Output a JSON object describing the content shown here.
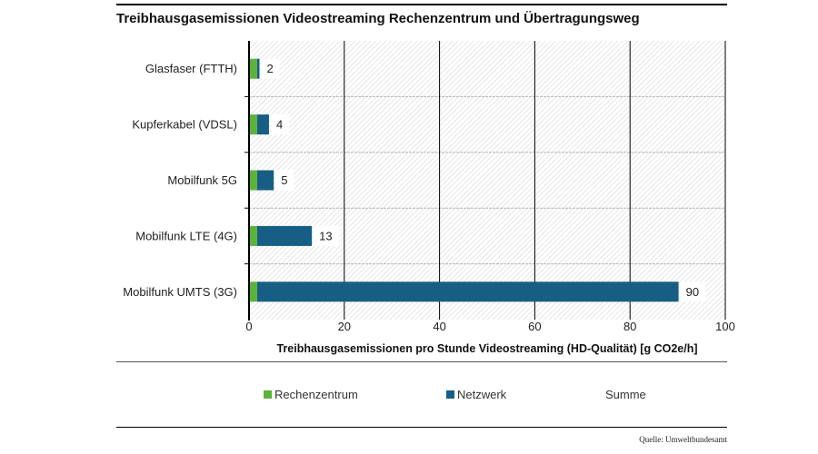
{
  "chart_data": {
    "type": "bar",
    "orientation": "horizontal",
    "stacked": true,
    "title": "Treibhausgasemissionen Videostreaming Rechenzentrum und Übertragungsweg",
    "xlabel": "Treibhausgasemissionen pro Stunde Videostreaming (HD-Qualität) [g CO2e/h]",
    "ylabel": "",
    "xlim": [
      0,
      100
    ],
    "xticks": [
      "0",
      "20",
      "40",
      "60",
      "80",
      "100"
    ],
    "categories": [
      "Glasfaser (FTTH)",
      "Kupferkabel (VDSL)",
      "Mobilfunk 5G",
      "Mobilfunk LTE (4G)",
      "Mobilfunk UMTS (3G)"
    ],
    "series": [
      {
        "name": "Rechenzentrum",
        "color": "#5db33a",
        "values": [
          1.5,
          1.5,
          1.5,
          1.5,
          1.5
        ]
      },
      {
        "name": "Netzwerk",
        "color": "#175e84",
        "values": [
          0.5,
          2.5,
          3.5,
          11.5,
          88.5
        ]
      }
    ],
    "totals_label": "Summe",
    "totals": [
      "2",
      "4",
      "5",
      "13",
      "90"
    ],
    "legend_position": "bottom",
    "grid": true
  },
  "source": "Quelle: Umweltbundesamt"
}
